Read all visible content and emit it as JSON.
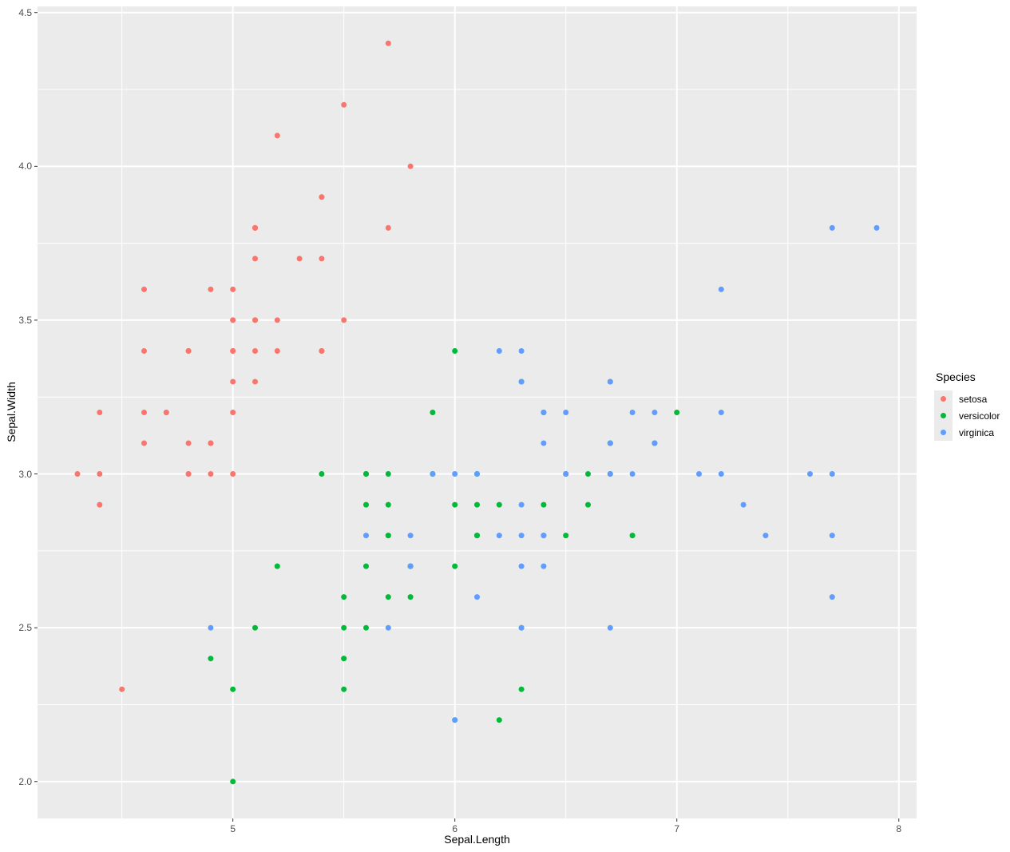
{
  "figure": {
    "background": "#FFFFFF",
    "panel_background": "#EBEBEB",
    "grid_color": "#FFFFFF",
    "tick_mark_color": "#333333",
    "tick_label_color": "#4D4D4D"
  },
  "chart_data": {
    "type": "scatter",
    "title": "",
    "xlabel": "Sepal.Length",
    "ylabel": "Sepal.Width",
    "xlim": [
      4.12,
      8.08
    ],
    "ylim": [
      1.88,
      4.52
    ],
    "grid": true,
    "x_ticks": [
      {
        "value": 5,
        "label": "5"
      },
      {
        "value": 6,
        "label": "6"
      },
      {
        "value": 7,
        "label": "7"
      },
      {
        "value": 8,
        "label": "8"
      }
    ],
    "y_ticks": [
      {
        "value": 2.0,
        "label": "2.0"
      },
      {
        "value": 2.5,
        "label": "2.5"
      },
      {
        "value": 3.0,
        "label": "3.0"
      },
      {
        "value": 3.5,
        "label": "3.5"
      },
      {
        "value": 4.0,
        "label": "4.0"
      },
      {
        "value": 4.5,
        "label": "4.5"
      }
    ],
    "x_minor_ticks": [
      4.5,
      5.5,
      6.5,
      7.5
    ],
    "y_minor_ticks": [
      2.25,
      2.75,
      3.25,
      3.75,
      4.25
    ],
    "legend": {
      "position": "right",
      "title": "Species",
      "items": [
        {
          "label": "setosa",
          "color": "#F8766D"
        },
        {
          "label": "versicolor",
          "color": "#00BA38"
        },
        {
          "label": "virginica",
          "color": "#619CFF"
        }
      ]
    },
    "series": [
      {
        "name": "setosa",
        "color": "#F8766D",
        "points": [
          [
            5.1,
            3.5
          ],
          [
            4.9,
            3.0
          ],
          [
            4.7,
            3.2
          ],
          [
            4.6,
            3.1
          ],
          [
            5.0,
            3.6
          ],
          [
            5.4,
            3.9
          ],
          [
            4.6,
            3.4
          ],
          [
            5.0,
            3.4
          ],
          [
            4.4,
            2.9
          ],
          [
            4.9,
            3.1
          ],
          [
            5.4,
            3.7
          ],
          [
            4.8,
            3.4
          ],
          [
            4.8,
            3.0
          ],
          [
            4.3,
            3.0
          ],
          [
            5.8,
            4.0
          ],
          [
            5.7,
            4.4
          ],
          [
            5.4,
            3.9
          ],
          [
            5.1,
            3.5
          ],
          [
            5.7,
            3.8
          ],
          [
            5.1,
            3.8
          ],
          [
            5.4,
            3.4
          ],
          [
            5.1,
            3.7
          ],
          [
            4.6,
            3.6
          ],
          [
            5.1,
            3.3
          ],
          [
            4.8,
            3.4
          ],
          [
            5.0,
            3.0
          ],
          [
            5.0,
            3.4
          ],
          [
            5.2,
            3.5
          ],
          [
            5.2,
            3.4
          ],
          [
            4.7,
            3.2
          ],
          [
            4.8,
            3.1
          ],
          [
            5.4,
            3.4
          ],
          [
            5.2,
            4.1
          ],
          [
            5.5,
            4.2
          ],
          [
            4.9,
            3.1
          ],
          [
            5.0,
            3.2
          ],
          [
            5.5,
            3.5
          ],
          [
            4.9,
            3.6
          ],
          [
            4.4,
            3.0
          ],
          [
            5.1,
            3.4
          ],
          [
            5.0,
            3.5
          ],
          [
            4.5,
            2.3
          ],
          [
            4.4,
            3.2
          ],
          [
            5.0,
            3.5
          ],
          [
            5.1,
            3.8
          ],
          [
            4.8,
            3.0
          ],
          [
            5.1,
            3.8
          ],
          [
            4.6,
            3.2
          ],
          [
            5.3,
            3.7
          ],
          [
            5.0,
            3.3
          ]
        ]
      },
      {
        "name": "versicolor",
        "color": "#00BA38",
        "points": [
          [
            7.0,
            3.2
          ],
          [
            6.4,
            3.2
          ],
          [
            6.9,
            3.1
          ],
          [
            5.5,
            2.3
          ],
          [
            6.5,
            2.8
          ],
          [
            5.7,
            2.8
          ],
          [
            6.3,
            3.3
          ],
          [
            4.9,
            2.4
          ],
          [
            6.6,
            2.9
          ],
          [
            5.2,
            2.7
          ],
          [
            5.0,
            2.0
          ],
          [
            5.9,
            3.0
          ],
          [
            6.0,
            2.2
          ],
          [
            6.1,
            2.9
          ],
          [
            5.6,
            2.9
          ],
          [
            6.7,
            3.1
          ],
          [
            5.6,
            3.0
          ],
          [
            5.8,
            2.7
          ],
          [
            6.2,
            2.2
          ],
          [
            5.6,
            2.5
          ],
          [
            5.9,
            3.2
          ],
          [
            6.1,
            2.8
          ],
          [
            6.3,
            2.5
          ],
          [
            6.1,
            2.8
          ],
          [
            6.4,
            2.9
          ],
          [
            6.6,
            3.0
          ],
          [
            6.8,
            2.8
          ],
          [
            6.7,
            3.0
          ],
          [
            6.0,
            2.9
          ],
          [
            5.7,
            2.6
          ],
          [
            5.5,
            2.4
          ],
          [
            5.5,
            2.4
          ],
          [
            5.8,
            2.7
          ],
          [
            6.0,
            2.7
          ],
          [
            5.4,
            3.0
          ],
          [
            6.0,
            3.4
          ],
          [
            6.7,
            3.1
          ],
          [
            6.3,
            2.3
          ],
          [
            5.6,
            3.0
          ],
          [
            5.5,
            2.5
          ],
          [
            5.5,
            2.6
          ],
          [
            6.1,
            3.0
          ],
          [
            5.8,
            2.6
          ],
          [
            5.0,
            2.3
          ],
          [
            5.6,
            2.7
          ],
          [
            5.7,
            3.0
          ],
          [
            5.7,
            2.9
          ],
          [
            6.2,
            2.9
          ],
          [
            5.1,
            2.5
          ],
          [
            5.7,
            2.8
          ]
        ]
      },
      {
        "name": "virginica",
        "color": "#619CFF",
        "points": [
          [
            6.3,
            3.3
          ],
          [
            5.8,
            2.7
          ],
          [
            7.1,
            3.0
          ],
          [
            6.3,
            2.9
          ],
          [
            6.5,
            3.0
          ],
          [
            7.6,
            3.0
          ],
          [
            4.9,
            2.5
          ],
          [
            7.3,
            2.9
          ],
          [
            6.7,
            2.5
          ],
          [
            7.2,
            3.6
          ],
          [
            6.5,
            3.2
          ],
          [
            6.4,
            2.7
          ],
          [
            6.8,
            3.0
          ],
          [
            5.7,
            2.5
          ],
          [
            5.8,
            2.8
          ],
          [
            6.4,
            3.2
          ],
          [
            6.5,
            3.0
          ],
          [
            7.7,
            3.8
          ],
          [
            7.7,
            2.6
          ],
          [
            6.0,
            2.2
          ],
          [
            6.9,
            3.2
          ],
          [
            5.6,
            2.8
          ],
          [
            7.7,
            2.8
          ],
          [
            6.3,
            2.7
          ],
          [
            6.7,
            3.3
          ],
          [
            7.2,
            3.2
          ],
          [
            6.2,
            2.8
          ],
          [
            6.1,
            3.0
          ],
          [
            6.4,
            2.8
          ],
          [
            7.2,
            3.0
          ],
          [
            7.4,
            2.8
          ],
          [
            7.9,
            3.8
          ],
          [
            6.4,
            2.8
          ],
          [
            6.3,
            2.8
          ],
          [
            6.1,
            2.6
          ],
          [
            7.7,
            3.0
          ],
          [
            6.3,
            3.4
          ],
          [
            6.4,
            3.1
          ],
          [
            6.0,
            3.0
          ],
          [
            6.9,
            3.1
          ],
          [
            6.7,
            3.1
          ],
          [
            6.9,
            3.1
          ],
          [
            5.8,
            2.7
          ],
          [
            6.8,
            3.2
          ],
          [
            6.7,
            3.3
          ],
          [
            6.7,
            3.0
          ],
          [
            6.3,
            2.5
          ],
          [
            6.5,
            3.0
          ],
          [
            6.2,
            3.4
          ],
          [
            5.9,
            3.0
          ]
        ]
      }
    ]
  }
}
